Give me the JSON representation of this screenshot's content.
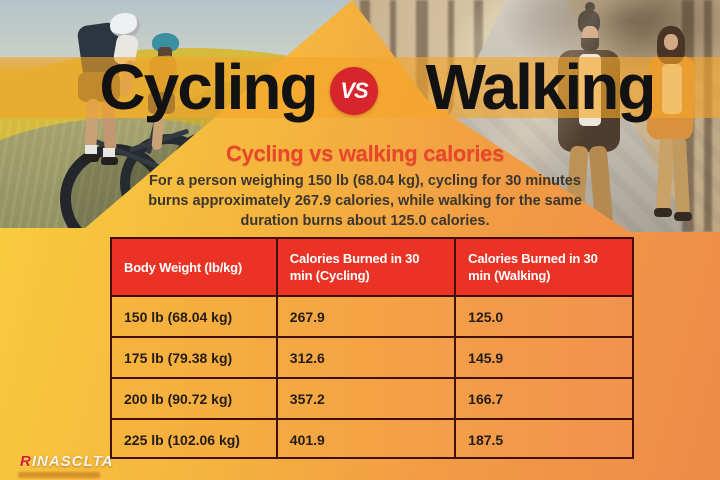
{
  "header": {
    "title_left": "Cycling",
    "vs_label": "VS",
    "title_right": "Walking"
  },
  "intro": {
    "heading": "Cycling vs walking calories",
    "line1": "For a person weighing 150 lb (68.04 kg), cycling for 30 minutes",
    "line2": "burns approximately 267.9 calories, while walking for the same",
    "line3": "duration burns about 125.0 calories."
  },
  "table": {
    "columns": [
      "Body Weight (lb/kg)",
      "Calories Burned in 30 min (Cycling)",
      "Calories Burned in 30 min (Walking)"
    ],
    "rows": [
      {
        "weight": "150 lb (68.04 kg)",
        "cycling": "267.9",
        "walking": "125.0"
      },
      {
        "weight": "175 lb (79.38 kg)",
        "cycling": "312.6",
        "walking": "145.9"
      },
      {
        "weight": "200 lb (90.72 kg)",
        "cycling": "357.2",
        "walking": "166.7"
      },
      {
        "weight": "225 lb (102.06 kg)",
        "cycling": "401.9",
        "walking": "187.5"
      }
    ]
  },
  "logo": {
    "initial": "R",
    "rest": "INASCLTA"
  },
  "colors": {
    "header_red": "#eb3325",
    "badge_red": "#d6252b",
    "heading_red": "#e8472b",
    "bg_yellow": "#f9d03e",
    "bg_orange": "#ee8b49",
    "table_border": "#3f0f08"
  },
  "chart_data": {
    "type": "table",
    "title": "Cycling vs walking calories",
    "columns": [
      "Body Weight (lb/kg)",
      "Calories Burned in 30 min (Cycling)",
      "Calories Burned in 30 min (Walking)"
    ],
    "rows": [
      [
        "150 lb (68.04 kg)",
        267.9,
        125.0
      ],
      [
        "175 lb (79.38 kg)",
        312.6,
        145.9
      ],
      [
        "200 lb (90.72 kg)",
        357.2,
        166.7
      ],
      [
        "225 lb (102.06 kg)",
        401.9,
        187.5
      ]
    ]
  }
}
